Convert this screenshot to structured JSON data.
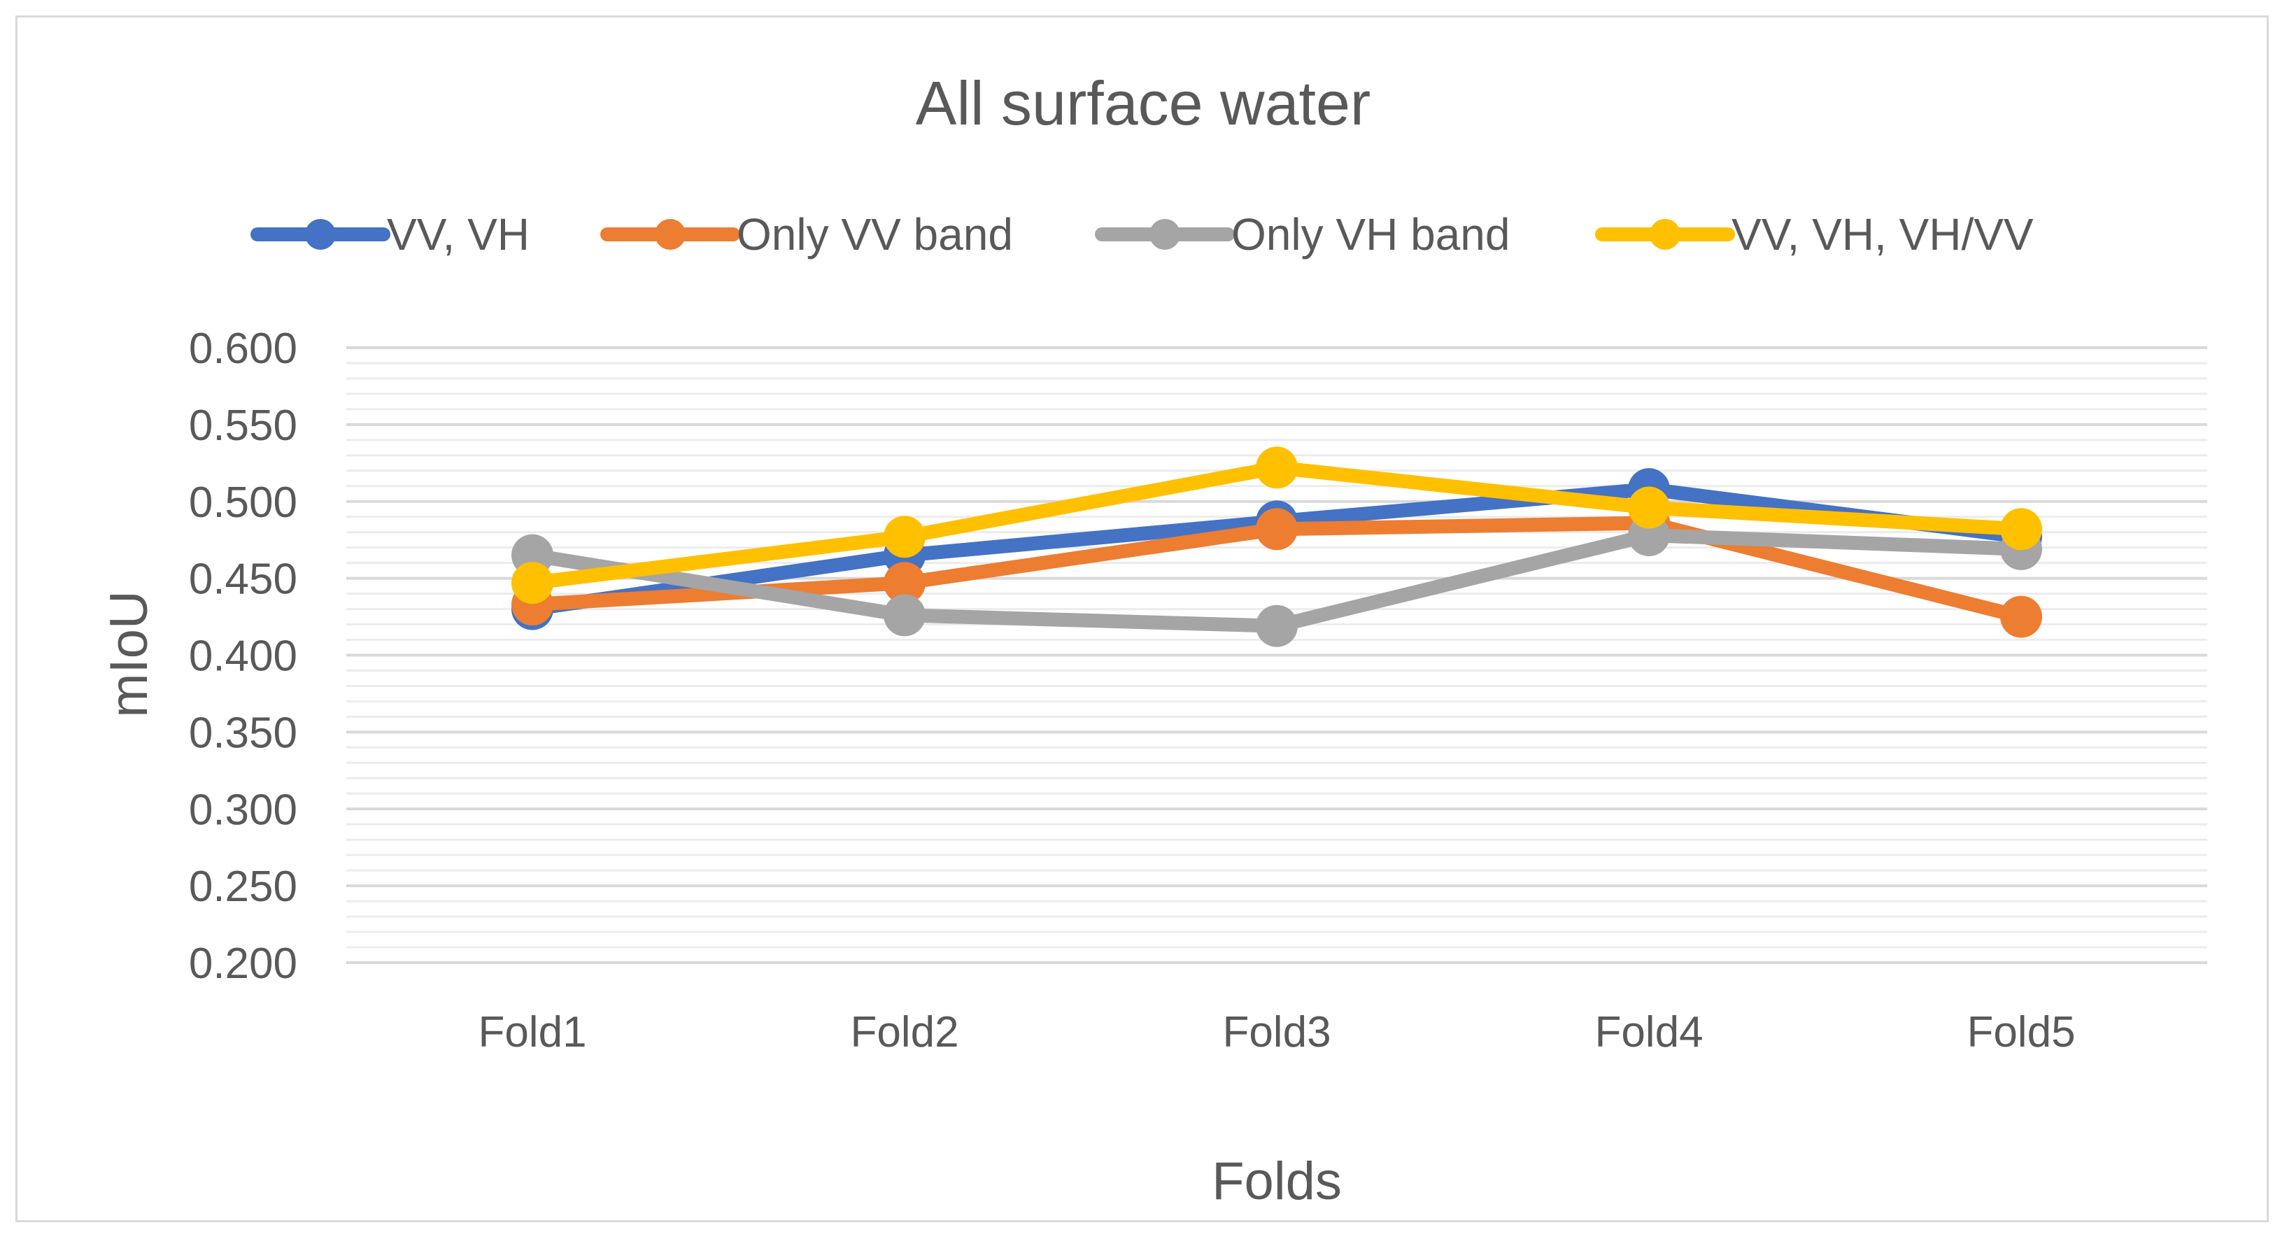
{
  "chart_data": {
    "type": "line",
    "title": "All surface water",
    "xlabel": "Folds",
    "ylabel": "mIoU",
    "categories": [
      "Fold1",
      "Fold2",
      "Fold3",
      "Fold4",
      "Fold5"
    ],
    "ylim": [
      0.2,
      0.6
    ],
    "ytick_step": 0.05,
    "ytick_labels": [
      "0.200",
      "0.250",
      "0.300",
      "0.350",
      "0.400",
      "0.450",
      "0.500",
      "0.550",
      "0.600"
    ],
    "grid": true,
    "legend_position": "top",
    "series": [
      {
        "name": "VV, VH",
        "color": "#4472c4",
        "values": [
          0.43,
          0.465,
          0.487,
          0.508,
          0.477
        ]
      },
      {
        "name": "Only VV band",
        "color": "#ed7d31",
        "values": [
          0.433,
          0.447,
          0.482,
          0.486,
          0.425
        ]
      },
      {
        "name": "Only VH band",
        "color": "#a5a5a5",
        "values": [
          0.465,
          0.426,
          0.419,
          0.478,
          0.469
        ]
      },
      {
        "name": "VV, VH, VH/VV",
        "color": "#ffc000",
        "values": [
          0.447,
          0.477,
          0.522,
          0.496,
          0.482
        ]
      }
    ]
  }
}
